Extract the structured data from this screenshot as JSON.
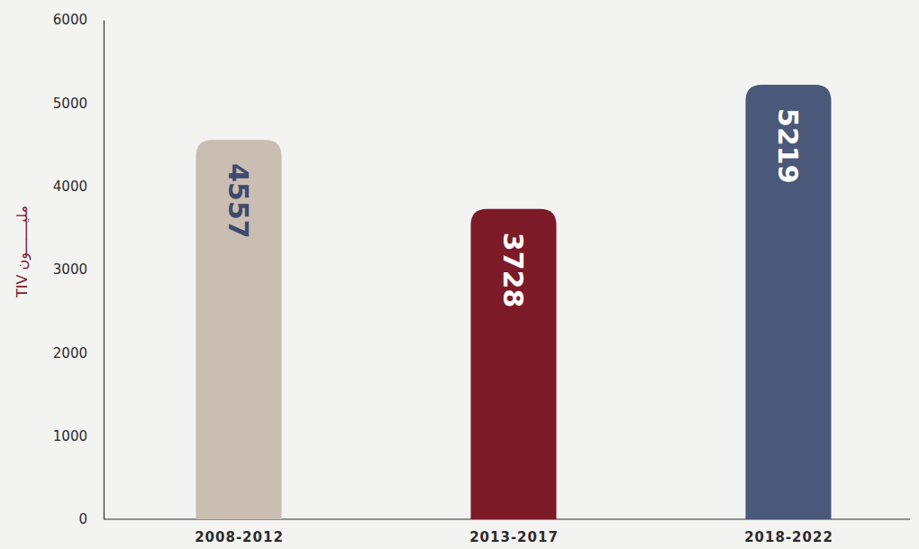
{
  "chart_data": {
    "type": "bar",
    "ylabel": "مليـــــــون TIV",
    "categories": [
      "2008-2012",
      "2013-2017",
      "2018-2022"
    ],
    "values": [
      4557,
      3728,
      5219
    ],
    "colors": [
      "#c9beb1",
      "#7d1a27",
      "#4a5879"
    ],
    "ylim": [
      0,
      6000
    ],
    "yticks": [
      0,
      1000,
      2000,
      3000,
      4000,
      5000,
      6000
    ],
    "grid": false,
    "data_labels": true
  }
}
